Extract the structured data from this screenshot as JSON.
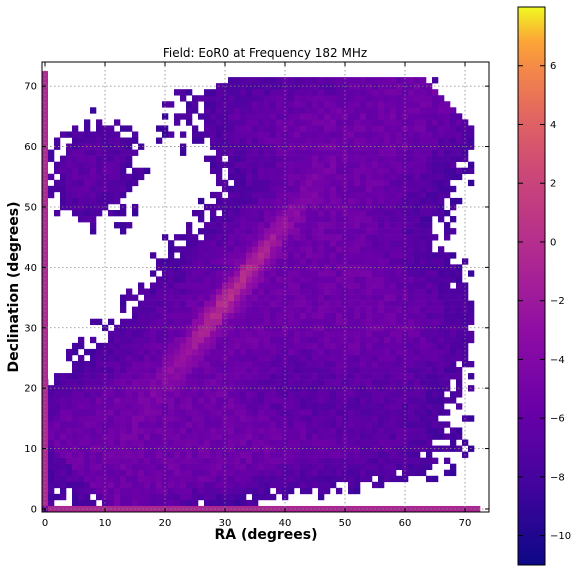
{
  "chart_data": {
    "type": "heatmap",
    "title": "Field: EoR0 at Frequency 182 MHz",
    "xlabel": "RA (degrees)",
    "ylabel": "Declination (degrees)",
    "xlim": [
      -0.5,
      74
    ],
    "ylim": [
      -0.5,
      74
    ],
    "xticks": [
      "0",
      "10",
      "20",
      "30",
      "40",
      "50",
      "60",
      "70"
    ],
    "yticks": [
      "0",
      "10",
      "20",
      "30",
      "40",
      "50",
      "60",
      "70"
    ],
    "grid": true,
    "colormap": "plasma",
    "colorbar": {
      "range": [
        -11,
        8
      ],
      "ticks": [
        "6",
        "4",
        "2",
        "0",
        "−2",
        "−4",
        "−6",
        "−8",
        "−10"
      ]
    }
  }
}
